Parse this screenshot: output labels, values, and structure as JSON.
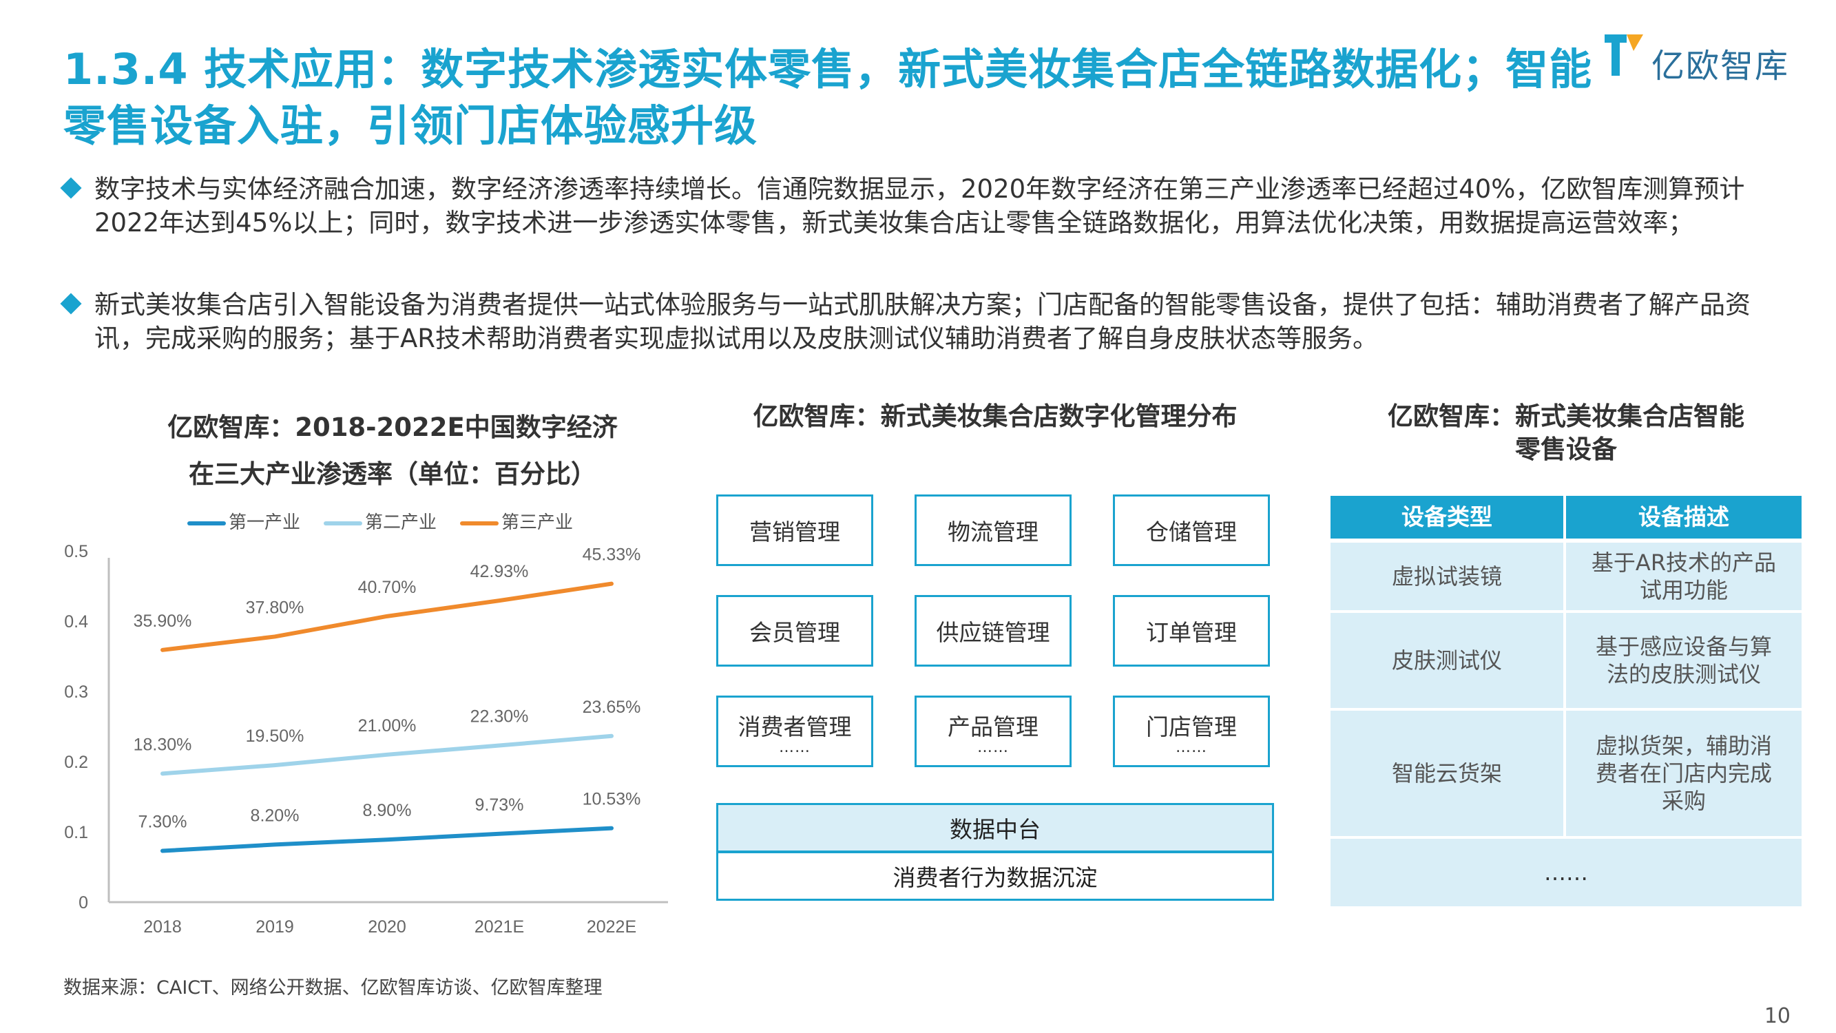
{
  "title": "1.3.4 技术应用：数字技术渗透实体零售，新式美妆集合店全链路数据化；智能零售设备入驻，引领门店体验感升级",
  "logo": {
    "text": "亿欧智库",
    "icon": "yiou-logo-icon",
    "colors": [
      "#1aa3cf",
      "#f5a623"
    ]
  },
  "bullets": [
    "数字技术与实体经济融合加速，数字经济渗透率持续增长。信通院数据显示，2020年数字经济在第三产业渗透率已经超过40%，亿欧智库测算预计2022年达到45%以上；同时，数字技术进一步渗透实体零售，新式美妆集合店让零售全链路数据化，用算法优化决策，用数据提高运营效率；",
    "新式美妆集合店引入智能设备为消费者提供一站式体验服务与一站式肌肤解决方案；门店配备的智能零售设备，提供了包括：辅助消费者了解产品资讯，完成采购的服务；基于AR技术帮助消费者实现虚拟试用以及皮肤测试仪辅助消费者了解自身皮肤状态等服务。"
  ],
  "chart_section": {
    "title_line1": "亿欧智库：2018-2022E中国数字经济",
    "title_line2": "在三大产业渗透率（单位：百分比）"
  },
  "chart_data": {
    "type": "line",
    "title": "亿欧智库：2018-2022E中国数字经济在三大产业渗透率（单位：百分比）",
    "categories": [
      "2018",
      "2019",
      "2020",
      "2021E",
      "2022E"
    ],
    "ylim": [
      0,
      0.5
    ],
    "yticks": [
      "0",
      "0.1",
      "0.2",
      "0.3",
      "0.4",
      "0.5"
    ],
    "grid": false,
    "legend_position": "top",
    "series": [
      {
        "name": "第一产业",
        "color": "#1f8fc9",
        "values": [
          0.073,
          0.082,
          0.089,
          0.0973,
          0.1053
        ],
        "labels": [
          "7.30%",
          "8.20%",
          "8.90%",
          "9.73%",
          "10.53%"
        ]
      },
      {
        "name": "第二产业",
        "color": "#9fd3ea",
        "values": [
          0.183,
          0.195,
          0.21,
          0.223,
          0.2365
        ],
        "labels": [
          "18.30%",
          "19.50%",
          "21.00%",
          "22.30%",
          "23.65%"
        ]
      },
      {
        "name": "第三产业",
        "color": "#f08a2c",
        "values": [
          0.359,
          0.378,
          0.407,
          0.4293,
          0.4533
        ],
        "labels": [
          "35.90%",
          "37.80%",
          "40.70%",
          "42.93%",
          "45.33%"
        ]
      }
    ]
  },
  "mgmt_section": {
    "title": "亿欧智库：新式美妆集合店数字化管理分布",
    "boxes": [
      {
        "label": "营销管理",
        "dots": ""
      },
      {
        "label": "物流管理",
        "dots": ""
      },
      {
        "label": "仓储管理",
        "dots": ""
      },
      {
        "label": "会员管理",
        "dots": ""
      },
      {
        "label": "供应链管理",
        "dots": ""
      },
      {
        "label": "订单管理",
        "dots": ""
      },
      {
        "label": "消费者管理",
        "dots": "……"
      },
      {
        "label": "产品管理",
        "dots": "……"
      },
      {
        "label": "门店管理",
        "dots": "……"
      }
    ],
    "platform": "数据中台",
    "foundation": "消费者行为数据沉淀"
  },
  "device_section": {
    "title_line1": "亿欧智库：新式美妆集合店智能",
    "title_line2": "零售设备",
    "headers": [
      "设备类型",
      "设备描述"
    ],
    "rows": [
      [
        "虚拟试装镜",
        "基于AR技术的产品试用功能"
      ],
      [
        "皮肤测试仪",
        "基于感应设备与算法的皮肤测试仪"
      ],
      [
        "智能云货架",
        "虚拟货架，辅助消费者在门店内完成采购"
      ]
    ],
    "more": "……"
  },
  "source": "数据来源：CAICT、网络公开数据、亿欧智库访谈、亿欧智库整理",
  "page_number": "10"
}
